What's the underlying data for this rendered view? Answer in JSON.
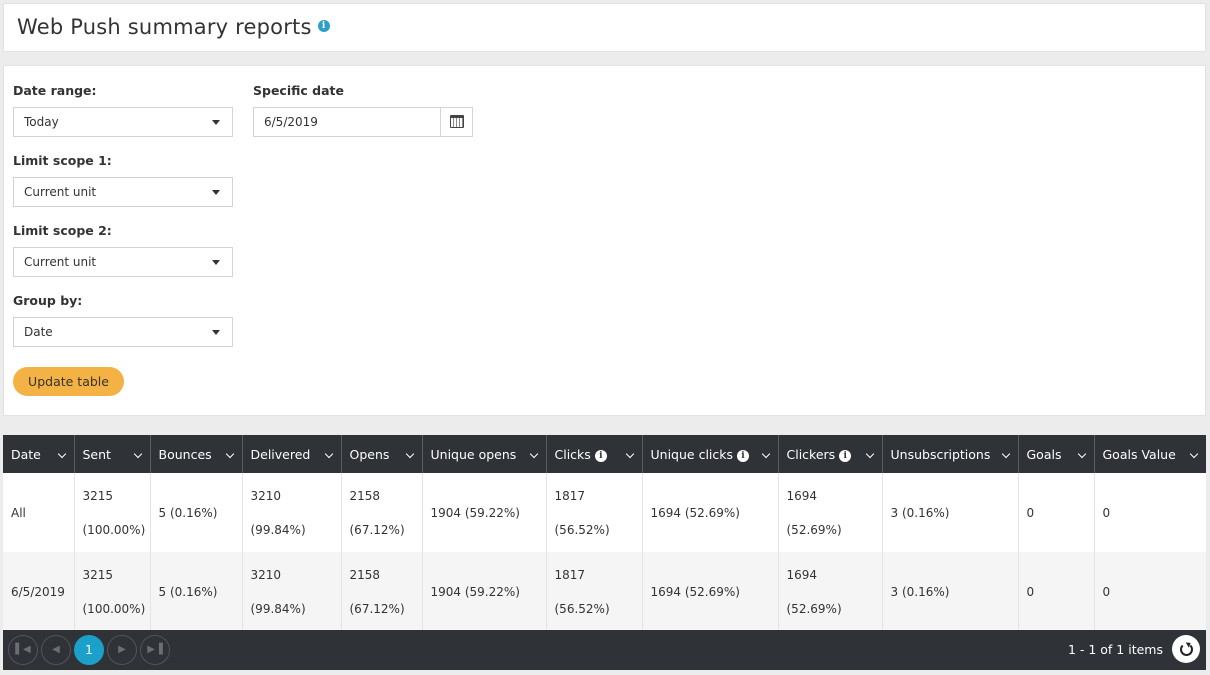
{
  "page": {
    "title": "Web Push summary reports",
    "info_icon": "info-icon"
  },
  "filters": {
    "date_range": {
      "label": "Date range:",
      "value": "Today"
    },
    "specific_date": {
      "label": "Specific date",
      "value": "6/5/2019"
    },
    "limit_scope_1": {
      "label": "Limit scope 1:",
      "value": "Current unit"
    },
    "limit_scope_2": {
      "label": "Limit scope 2:",
      "value": "Current unit"
    },
    "group_by": {
      "label": "Group by:",
      "value": "Date"
    },
    "update_label": "Update table"
  },
  "table": {
    "columns": [
      "Date",
      "Sent",
      "Bounces",
      "Delivered",
      "Opens",
      "Unique opens",
      "Clicks",
      "Unique clicks",
      "Clickers",
      "Unsubscriptions",
      "Goals",
      "Goals Value"
    ],
    "info_columns": [
      "Clicks",
      "Unique clicks",
      "Clickers"
    ],
    "rows": [
      {
        "date": "All",
        "sent": {
          "count": "3215",
          "pct": "(100.00%)"
        },
        "bounces": "5 (0.16%)",
        "delivered": {
          "count": "3210",
          "pct": "(99.84%)"
        },
        "opens": {
          "count": "2158",
          "pct": "(67.12%)"
        },
        "unique_opens": "1904 (59.22%)",
        "clicks": {
          "count": "1817",
          "pct": "(56.52%)"
        },
        "unique_clicks": "1694 (52.69%)",
        "clickers": "1694 (52.69%)",
        "unsubscriptions": "3 (0.16%)",
        "goals": "0",
        "goals_value": "0"
      },
      {
        "date": "6/5/2019",
        "sent": {
          "count": "3215",
          "pct": "(100.00%)"
        },
        "bounces": "5 (0.16%)",
        "delivered": {
          "count": "3210",
          "pct": "(99.84%)"
        },
        "opens": {
          "count": "2158",
          "pct": "(67.12%)"
        },
        "unique_opens": "1904 (59.22%)",
        "clicks": {
          "count": "1817",
          "pct": "(56.52%)"
        },
        "unique_clicks": "1694 (52.69%)",
        "clickers": "1694 (52.69%)",
        "unsubscriptions": "3 (0.16%)",
        "goals": "0",
        "goals_value": "0"
      }
    ]
  },
  "pager": {
    "current_page": "1",
    "info": "1 - 1 of 1 items",
    "first_icon": "first-page-icon",
    "prev_icon": "prev-page-icon",
    "next_icon": "next-page-icon",
    "last_icon": "last-page-icon",
    "refresh_icon": "refresh-icon"
  }
}
